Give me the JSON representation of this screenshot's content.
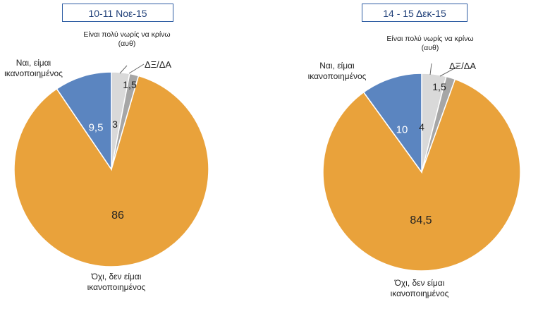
{
  "chart_data": [
    {
      "type": "pie",
      "title": "10-11 Νοε-15",
      "slices": [
        {
          "label": "Είναι πολύ νωρίς να κρίνω (αυθ)",
          "value": 3,
          "value_label": "3",
          "color": "#d9d9d9"
        },
        {
          "label": "ΔΞ/ΔΑ",
          "value": 1.5,
          "value_label": "1,5",
          "color": "#a6a6a6"
        },
        {
          "label": "Όχι, δεν είμαι ικανοποιημένος",
          "value": 86,
          "value_label": "86",
          "color": "#e9a23b"
        },
        {
          "label": "Ναι, είμαι ικανοποιημένος",
          "value": 9.5,
          "value_label": "9,5",
          "color": "#5b85c0"
        }
      ]
    },
    {
      "type": "pie",
      "title": "14 - 15 Δεκ-15",
      "slices": [
        {
          "label": "Είναι πολύ νωρίς να κρίνω (αυθ)",
          "value": 4,
          "value_label": "4",
          "color": "#d9d9d9"
        },
        {
          "label": "ΔΞ/ΔΑ",
          "value": 1.5,
          "value_label": "1,5",
          "color": "#a6a6a6"
        },
        {
          "label": "Όχι, δεν είμαι ικανοποιημένος",
          "value": 84.5,
          "value_label": "84,5",
          "color": "#e9a23b"
        },
        {
          "label": "Ναι, είμαι ικανοποιημένος",
          "value": 10,
          "value_label": "10",
          "color": "#5b85c0"
        }
      ]
    }
  ],
  "labels": {
    "too_early_line1": "Είναι πολύ νωρίς να κρίνω",
    "too_early_line2": "(αυθ)",
    "dk": "ΔΞ/ΔΑ",
    "yes_line1": "Ναι, είμαι",
    "yes_line2": "ικανοποιημένος",
    "no_line1": "Όχι, δεν είμαι",
    "no_line2": "ικανοποιημένος"
  }
}
